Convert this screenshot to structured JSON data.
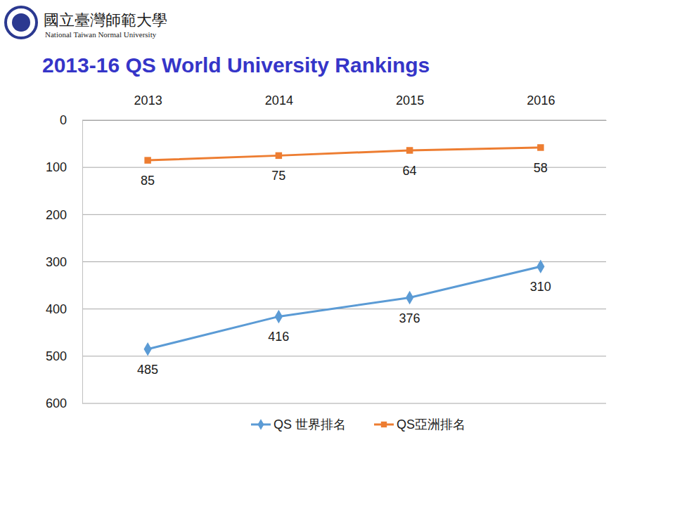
{
  "header": {
    "title_zh": "國立臺灣師範大學",
    "title_en": "National Taiwan Normal University"
  },
  "chart_data": {
    "type": "line",
    "title": "2013-16 QS World University Rankings",
    "categories": [
      "2013",
      "2014",
      "2015",
      "2016"
    ],
    "series": [
      {
        "name": "QS 世界排名",
        "color": "#5b9bd5",
        "marker": "diamond",
        "values": [
          485,
          416,
          376,
          310
        ]
      },
      {
        "name": "QS亞洲排名",
        "color": "#ed7d31",
        "marker": "square",
        "values": [
          85,
          75,
          64,
          58
        ]
      }
    ],
    "ylim": [
      600,
      0
    ],
    "yticks": [
      0,
      100,
      200,
      300,
      400,
      500,
      600
    ],
    "grid": true,
    "legend": "bottom",
    "data_labels": true
  }
}
